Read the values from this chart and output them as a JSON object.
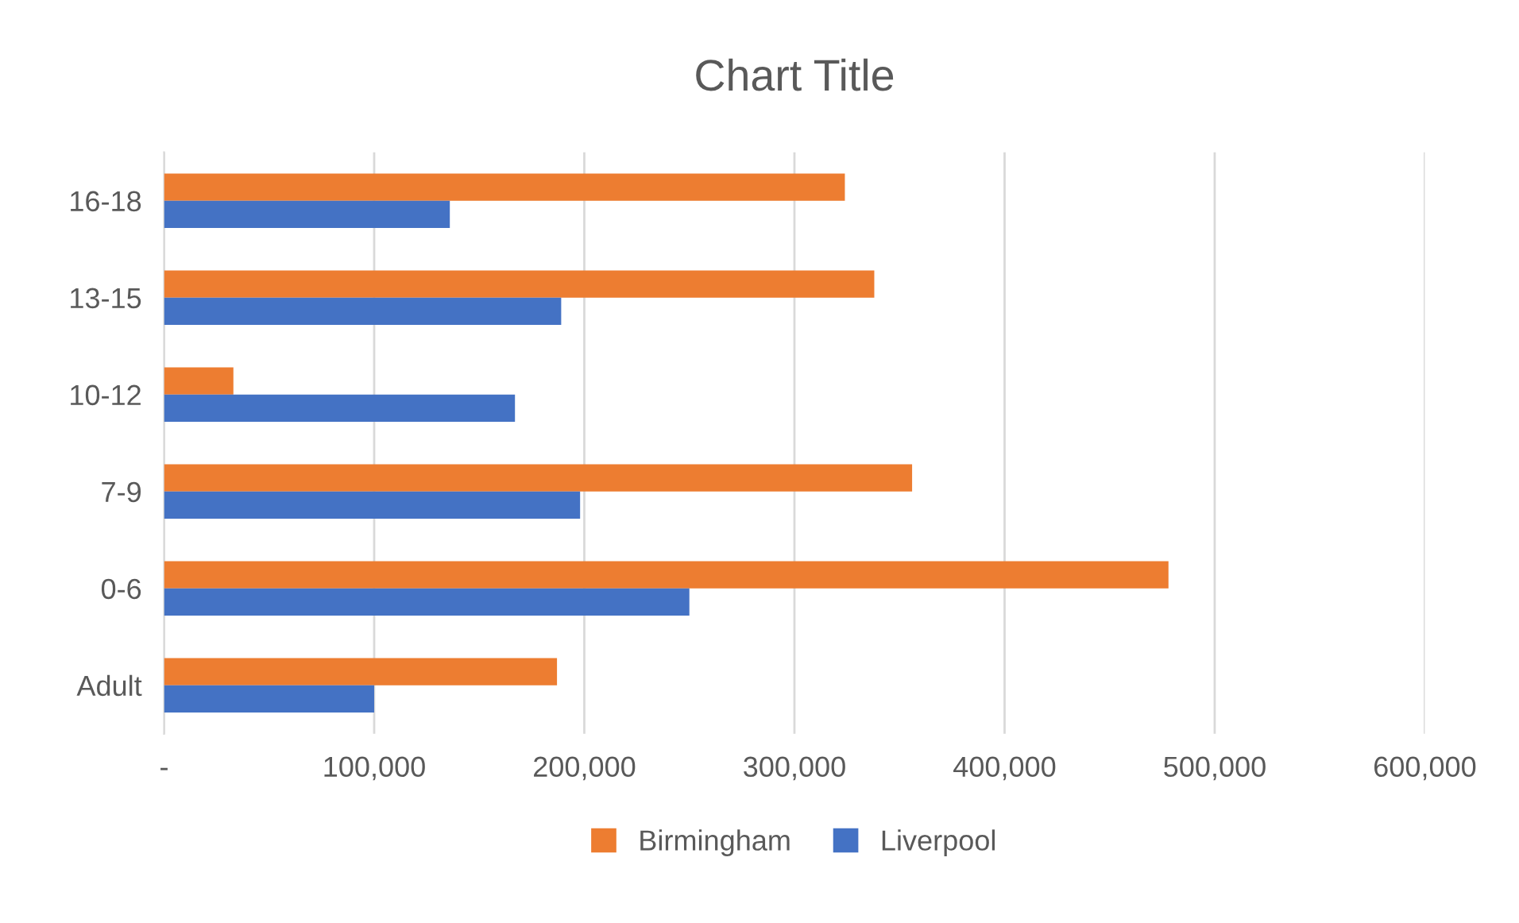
{
  "chart_data": {
    "type": "bar",
    "orientation": "horizontal",
    "title": "Chart Title",
    "categories": [
      "16-18",
      "13-15",
      "10-12",
      "7-9",
      "0-6",
      "Adult"
    ],
    "series": [
      {
        "name": "Birmingham",
        "color": "#ed7d31",
        "values": [
          324000,
          338000,
          33000,
          356000,
          478000,
          187000
        ]
      },
      {
        "name": "Liverpool",
        "color": "#4472c4",
        "values": [
          136000,
          189000,
          167000,
          198000,
          250000,
          100000
        ]
      }
    ],
    "xlim": [
      0,
      600000
    ],
    "xticks": [
      {
        "value": 0,
        "label": "-"
      },
      {
        "value": 100000,
        "label": "100,000"
      },
      {
        "value": 200000,
        "label": "200,000"
      },
      {
        "value": 300000,
        "label": "300,000"
      },
      {
        "value": 400000,
        "label": "400,000"
      },
      {
        "value": 500000,
        "label": "500,000"
      },
      {
        "value": 600000,
        "label": "600,000"
      }
    ],
    "grid": "x",
    "legend": "bottom"
  }
}
